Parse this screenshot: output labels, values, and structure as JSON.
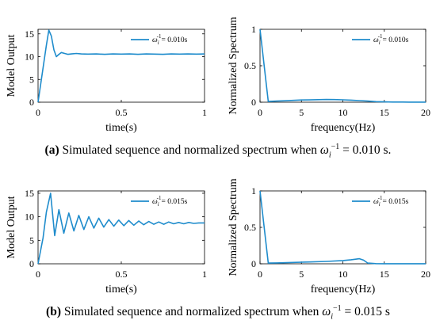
{
  "chart_data": [
    {
      "type": "line",
      "xlabel": "time(s)",
      "ylabel": "Model Output",
      "xlim": [
        0,
        1
      ],
      "ylim": [
        0,
        16
      ],
      "xticks": [
        "0",
        "0.5",
        "1"
      ],
      "yticks": [
        "0",
        "5",
        "10",
        "15"
      ],
      "legend": "top-right",
      "series": [
        {
          "name": "ω_i^-1 = 0.010s",
          "color": "#1f8ccc",
          "x": [
            0,
            0.03,
            0.05,
            0.065,
            0.08,
            0.095,
            0.11,
            0.125,
            0.14,
            0.16,
            0.18,
            0.2,
            0.23,
            0.26,
            0.3,
            0.35,
            0.4,
            0.45,
            0.5,
            0.55,
            0.6,
            0.65,
            0.7,
            0.75,
            0.8,
            0.85,
            0.9,
            0.95,
            1.0
          ],
          "y": [
            0,
            7.5,
            12.5,
            15.8,
            14.5,
            11.5,
            10.0,
            10.5,
            10.9,
            10.7,
            10.5,
            10.6,
            10.7,
            10.6,
            10.55,
            10.6,
            10.5,
            10.6,
            10.55,
            10.6,
            10.5,
            10.6,
            10.55,
            10.5,
            10.6,
            10.55,
            10.6,
            10.55,
            10.6
          ]
        }
      ]
    },
    {
      "type": "line",
      "xlabel": "frequency(Hz)",
      "ylabel": "Normalized Spectrum",
      "xlim": [
        0,
        20
      ],
      "ylim": [
        0,
        1
      ],
      "xticks": [
        "0",
        "5",
        "10",
        "15",
        "20"
      ],
      "yticks": [
        "0",
        "0.5",
        "1"
      ],
      "legend": "top-right",
      "series": [
        {
          "name": "ω_i^-1 = 0.010s",
          "color": "#1f8ccc",
          "x": [
            0,
            1,
            2,
            3,
            4,
            5,
            6,
            7,
            8,
            9,
            10,
            11,
            12,
            13,
            14,
            15,
            16,
            17,
            18,
            19,
            20
          ],
          "y": [
            1.0,
            0.01,
            0.015,
            0.02,
            0.025,
            0.03,
            0.032,
            0.035,
            0.037,
            0.036,
            0.033,
            0.028,
            0.022,
            0.015,
            0.008,
            0.004,
            0.002,
            0.002,
            0.001,
            0.001,
            0.001
          ]
        }
      ]
    },
    {
      "type": "line",
      "xlabel": "time(s)",
      "ylabel": "Model Output",
      "xlim": [
        0,
        1
      ],
      "ylim": [
        0,
        15.5
      ],
      "xticks": [
        "0",
        "0.5",
        "1"
      ],
      "yticks": [
        "0",
        "5",
        "10",
        "15"
      ],
      "legend": "top-right",
      "series": [
        {
          "name": "ω_i^-1 = 0.015s",
          "color": "#1f8ccc",
          "x": [
            0,
            0.03,
            0.05,
            0.075,
            0.1,
            0.125,
            0.155,
            0.185,
            0.215,
            0.245,
            0.275,
            0.305,
            0.335,
            0.365,
            0.395,
            0.425,
            0.455,
            0.485,
            0.515,
            0.545,
            0.575,
            0.605,
            0.635,
            0.665,
            0.695,
            0.725,
            0.755,
            0.785,
            0.815,
            0.845,
            0.875,
            0.905,
            0.935,
            0.965,
            1.0
          ],
          "y": [
            0,
            5.5,
            11,
            15,
            6,
            11.5,
            6.5,
            10.8,
            7.0,
            10.3,
            7.3,
            10.0,
            7.6,
            9.7,
            7.8,
            9.4,
            8.0,
            9.3,
            8.1,
            9.2,
            8.2,
            9.1,
            8.3,
            9.0,
            8.4,
            8.9,
            8.4,
            8.9,
            8.5,
            8.8,
            8.5,
            8.8,
            8.6,
            8.7,
            8.7
          ]
        }
      ]
    },
    {
      "type": "line",
      "xlabel": "frequency(Hz)",
      "ylabel": "Normalized Spectrum",
      "xlim": [
        0,
        20
      ],
      "ylim": [
        0,
        1
      ],
      "xticks": [
        "0",
        "5",
        "10",
        "15",
        "20"
      ],
      "yticks": [
        "0",
        "0.5",
        "1"
      ],
      "legend": "top-right",
      "series": [
        {
          "name": "ω_i^-1 = 0.015s",
          "color": "#1f8ccc",
          "x": [
            0,
            1,
            2,
            4,
            6,
            8,
            10,
            11,
            12,
            12.5,
            13,
            14,
            15,
            17,
            20
          ],
          "y": [
            1.0,
            0.01,
            0.012,
            0.018,
            0.025,
            0.033,
            0.045,
            0.055,
            0.07,
            0.05,
            0.01,
            0.002,
            0.001,
            0.001,
            0.001
          ]
        }
      ]
    }
  ],
  "captions": [
    {
      "tag": "(a)",
      "text": " Simulated sequence and normalized spectrum when ",
      "symbol": "ω",
      "sub": "i",
      "sup": "−1",
      "value": " = 0.010 s."
    },
    {
      "tag": "(b)",
      "text": " Simulated sequence and normalized spectrum when ",
      "symbol": "ω",
      "sub": "i",
      "sup": "−1",
      "value": " = 0.015 s"
    }
  ]
}
